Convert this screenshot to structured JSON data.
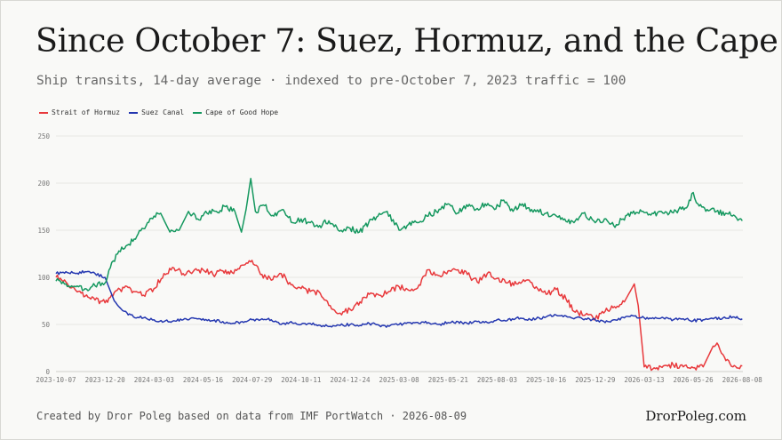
{
  "title": "Since October 7: Suez, Hormuz, and the Cape",
  "subtitle": "Ship transits, 14-day average · indexed to pre-October 7, 2023 traffic = 100",
  "footer": {
    "source": "Created by Dror Poleg based on data from IMF PortWatch · 2026-08-09",
    "brand": "DrorPoleg.com"
  },
  "chart_data": {
    "type": "line",
    "ylim": [
      0,
      250
    ],
    "yticks": [
      0,
      50,
      100,
      150,
      200,
      250
    ],
    "xrange": [
      "2023-10-07",
      "2026-08-09"
    ],
    "xticks": [
      "2023-10-07",
      "2023-12-20",
      "2024-03-03",
      "2024-05-16",
      "2024-07-29",
      "2024-10-11",
      "2024-12-24",
      "2025-03-08",
      "2025-05-21",
      "2025-08-03",
      "2025-10-16",
      "2025-12-29",
      "2026-03-13",
      "2026-05-26",
      "2026-08-08"
    ],
    "grid": true,
    "legend_position": "top-left",
    "series": [
      {
        "name": "Strait of Hormuz",
        "color": "#e8393c",
        "points": [
          [
            "2023-10-07",
            100
          ],
          [
            "2023-10-22",
            95
          ],
          [
            "2023-11-06",
            86
          ],
          [
            "2023-11-20",
            80
          ],
          [
            "2023-12-05",
            76
          ],
          [
            "2023-12-20",
            73
          ],
          [
            "2024-01-03",
            84
          ],
          [
            "2024-01-18",
            89
          ],
          [
            "2024-02-01",
            85
          ],
          [
            "2024-02-16",
            81
          ],
          [
            "2024-03-03",
            88
          ],
          [
            "2024-03-18",
            104
          ],
          [
            "2024-04-02",
            110
          ],
          [
            "2024-04-16",
            104
          ],
          [
            "2024-05-01",
            106
          ],
          [
            "2024-05-16",
            108
          ],
          [
            "2024-05-31",
            103
          ],
          [
            "2024-06-15",
            107
          ],
          [
            "2024-06-29",
            105
          ],
          [
            "2024-07-14",
            113
          ],
          [
            "2024-07-29",
            118
          ],
          [
            "2024-08-13",
            103
          ],
          [
            "2024-08-27",
            97
          ],
          [
            "2024-09-11",
            104
          ],
          [
            "2024-09-26",
            92
          ],
          [
            "2024-10-11",
            88
          ],
          [
            "2024-10-25",
            85
          ],
          [
            "2024-11-09",
            83
          ],
          [
            "2024-11-24",
            70
          ],
          [
            "2024-12-09",
            62
          ],
          [
            "2024-12-24",
            66
          ],
          [
            "2025-01-08",
            74
          ],
          [
            "2025-01-22",
            82
          ],
          [
            "2025-02-06",
            81
          ],
          [
            "2025-02-21",
            85
          ],
          [
            "2025-03-08",
            90
          ],
          [
            "2025-03-23",
            86
          ],
          [
            "2025-04-07",
            92
          ],
          [
            "2025-04-21",
            108
          ],
          [
            "2025-05-06",
            102
          ],
          [
            "2025-05-21",
            107
          ],
          [
            "2025-06-05",
            108
          ],
          [
            "2025-06-19",
            103
          ],
          [
            "2025-07-04",
            95
          ],
          [
            "2025-07-19",
            104
          ],
          [
            "2025-08-03",
            99
          ],
          [
            "2025-08-18",
            94
          ],
          [
            "2025-09-01",
            93
          ],
          [
            "2025-09-16",
            97
          ],
          [
            "2025-10-01",
            90
          ],
          [
            "2025-10-16",
            82
          ],
          [
            "2025-10-31",
            87
          ],
          [
            "2025-11-15",
            77
          ],
          [
            "2025-11-29",
            63
          ],
          [
            "2025-12-14",
            60
          ],
          [
            "2025-12-29",
            56
          ],
          [
            "2026-01-13",
            64
          ],
          [
            "2026-01-27",
            69
          ],
          [
            "2026-02-11",
            74
          ],
          [
            "2026-02-26",
            93
          ],
          [
            "2026-03-04",
            70
          ],
          [
            "2026-03-13",
            5
          ],
          [
            "2026-03-28",
            4
          ],
          [
            "2026-04-11",
            6
          ],
          [
            "2026-04-26",
            7
          ],
          [
            "2026-05-11",
            5
          ],
          [
            "2026-05-26",
            4
          ],
          [
            "2026-06-10",
            5
          ],
          [
            "2026-06-25",
            27
          ],
          [
            "2026-07-03",
            28
          ],
          [
            "2026-07-10",
            18
          ],
          [
            "2026-07-25",
            5
          ],
          [
            "2026-08-08",
            6
          ]
        ]
      },
      {
        "name": "Suez Canal",
        "color": "#2437b0",
        "points": [
          [
            "2023-10-07",
            104
          ],
          [
            "2023-10-22",
            106
          ],
          [
            "2023-11-06",
            104
          ],
          [
            "2023-11-20",
            106
          ],
          [
            "2023-12-05",
            104
          ],
          [
            "2023-12-20",
            100
          ],
          [
            "2024-01-03",
            75
          ],
          [
            "2024-01-18",
            64
          ],
          [
            "2024-02-01",
            58
          ],
          [
            "2024-02-16",
            57
          ],
          [
            "2024-03-03",
            55
          ],
          [
            "2024-03-18",
            53
          ],
          [
            "2024-04-02",
            54
          ],
          [
            "2024-04-16",
            55
          ],
          [
            "2024-05-01",
            57
          ],
          [
            "2024-05-16",
            56
          ],
          [
            "2024-05-31",
            54
          ],
          [
            "2024-06-15",
            53
          ],
          [
            "2024-06-29",
            51
          ],
          [
            "2024-07-14",
            53
          ],
          [
            "2024-07-29",
            55
          ],
          [
            "2024-08-13",
            56
          ],
          [
            "2024-08-27",
            55
          ],
          [
            "2024-09-11",
            50
          ],
          [
            "2024-09-26",
            53
          ],
          [
            "2024-10-11",
            50
          ],
          [
            "2024-10-25",
            51
          ],
          [
            "2024-11-09",
            49
          ],
          [
            "2024-11-24",
            48
          ],
          [
            "2024-12-09",
            49
          ],
          [
            "2024-12-24",
            50
          ],
          [
            "2025-01-08",
            49
          ],
          [
            "2025-01-22",
            51
          ],
          [
            "2025-02-06",
            49
          ],
          [
            "2025-02-21",
            48
          ],
          [
            "2025-03-08",
            50
          ],
          [
            "2025-03-23",
            52
          ],
          [
            "2025-04-07",
            51
          ],
          [
            "2025-04-21",
            52
          ],
          [
            "2025-05-06",
            50
          ],
          [
            "2025-05-21",
            52
          ],
          [
            "2025-06-05",
            53
          ],
          [
            "2025-06-19",
            51
          ],
          [
            "2025-07-04",
            53
          ],
          [
            "2025-07-19",
            52
          ],
          [
            "2025-08-03",
            55
          ],
          [
            "2025-08-18",
            54
          ],
          [
            "2025-09-01",
            57
          ],
          [
            "2025-09-16",
            55
          ],
          [
            "2025-10-01",
            56
          ],
          [
            "2025-10-16",
            58
          ],
          [
            "2025-10-31",
            60
          ],
          [
            "2025-11-15",
            59
          ],
          [
            "2025-11-29",
            57
          ],
          [
            "2025-12-14",
            56
          ],
          [
            "2025-12-29",
            55
          ],
          [
            "2026-01-13",
            52
          ],
          [
            "2026-01-27",
            55
          ],
          [
            "2026-02-11",
            57
          ],
          [
            "2026-02-26",
            59
          ],
          [
            "2026-03-13",
            57
          ],
          [
            "2026-03-28",
            56
          ],
          [
            "2026-04-11",
            57
          ],
          [
            "2026-04-26",
            55
          ],
          [
            "2026-05-11",
            56
          ],
          [
            "2026-05-26",
            54
          ],
          [
            "2026-06-10",
            55
          ],
          [
            "2026-06-25",
            56
          ],
          [
            "2026-07-10",
            57
          ],
          [
            "2026-07-25",
            58
          ],
          [
            "2026-08-08",
            56
          ]
        ]
      },
      {
        "name": "Cape of Good Hope",
        "color": "#15985f",
        "points": [
          [
            "2023-10-07",
            96
          ],
          [
            "2023-10-22",
            93
          ],
          [
            "2023-11-06",
            90
          ],
          [
            "2023-11-20",
            88
          ],
          [
            "2023-12-05",
            91
          ],
          [
            "2023-12-20",
            94
          ],
          [
            "2023-12-28",
            110
          ],
          [
            "2024-01-10",
            128
          ],
          [
            "2024-01-25",
            135
          ],
          [
            "2024-02-08",
            146
          ],
          [
            "2024-02-22",
            158
          ],
          [
            "2024-03-03",
            165
          ],
          [
            "2024-03-13",
            168
          ],
          [
            "2024-03-27",
            148
          ],
          [
            "2024-04-10",
            150
          ],
          [
            "2024-04-24",
            170
          ],
          [
            "2024-05-08",
            162
          ],
          [
            "2024-05-22",
            168
          ],
          [
            "2024-06-05",
            170
          ],
          [
            "2024-06-19",
            175
          ],
          [
            "2024-07-03",
            170
          ],
          [
            "2024-07-13",
            148
          ],
          [
            "2024-07-20",
            172
          ],
          [
            "2024-07-27",
            205
          ],
          [
            "2024-08-03",
            170
          ],
          [
            "2024-08-17",
            176
          ],
          [
            "2024-08-31",
            165
          ],
          [
            "2024-09-14",
            172
          ],
          [
            "2024-09-28",
            158
          ],
          [
            "2024-10-11",
            162
          ],
          [
            "2024-10-25",
            158
          ],
          [
            "2024-11-08",
            155
          ],
          [
            "2024-11-22",
            160
          ],
          [
            "2024-12-06",
            150
          ],
          [
            "2024-12-24",
            152
          ],
          [
            "2025-01-07",
            148
          ],
          [
            "2025-01-21",
            158
          ],
          [
            "2025-02-04",
            165
          ],
          [
            "2025-02-18",
            170
          ],
          [
            "2025-03-08",
            150
          ],
          [
            "2025-03-22",
            156
          ],
          [
            "2025-04-05",
            158
          ],
          [
            "2025-04-19",
            165
          ],
          [
            "2025-05-03",
            170
          ],
          [
            "2025-05-21",
            178
          ],
          [
            "2025-06-04",
            168
          ],
          [
            "2025-06-18",
            177
          ],
          [
            "2025-07-02",
            172
          ],
          [
            "2025-07-16",
            178
          ],
          [
            "2025-07-30",
            172
          ],
          [
            "2025-08-13",
            182
          ],
          [
            "2025-08-27",
            170
          ],
          [
            "2025-09-10",
            178
          ],
          [
            "2025-09-24",
            172
          ],
          [
            "2025-10-16",
            168
          ],
          [
            "2025-10-30",
            166
          ],
          [
            "2025-11-13",
            162
          ],
          [
            "2025-11-27",
            158
          ],
          [
            "2025-12-11",
            168
          ],
          [
            "2025-12-29",
            158
          ],
          [
            "2026-01-12",
            162
          ],
          [
            "2026-01-26",
            155
          ],
          [
            "2026-02-09",
            162
          ],
          [
            "2026-02-23",
            168
          ],
          [
            "2026-03-09",
            170
          ],
          [
            "2026-03-23",
            166
          ],
          [
            "2026-04-06",
            170
          ],
          [
            "2026-04-20",
            168
          ],
          [
            "2026-05-04",
            172
          ],
          [
            "2026-05-18",
            176
          ],
          [
            "2026-05-26",
            190
          ],
          [
            "2026-06-02",
            178
          ],
          [
            "2026-06-16",
            172
          ],
          [
            "2026-06-30",
            170
          ],
          [
            "2026-07-14",
            168
          ],
          [
            "2026-07-28",
            165
          ],
          [
            "2026-08-08",
            160
          ]
        ]
      }
    ]
  }
}
